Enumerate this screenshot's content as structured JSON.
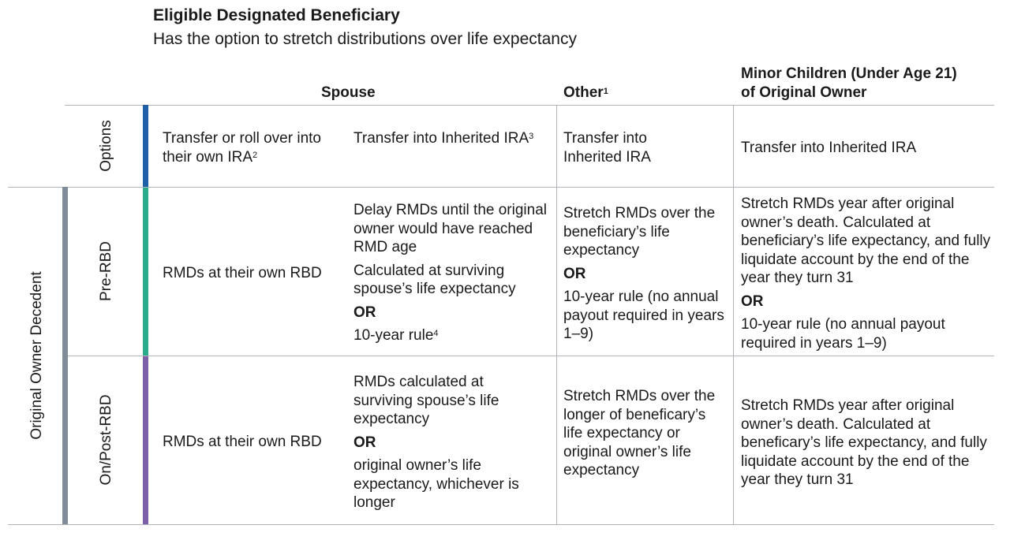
{
  "header": {
    "title": "Eligible Designated Beneficiary",
    "subtitle": "Has the option to stretch distributions over life expectancy"
  },
  "columns": {
    "spouse": "Spouse",
    "other": "Other",
    "other_sup": "1",
    "minor_line1": "Minor Children (Under Age 21)",
    "minor_line2": "of Original Owner"
  },
  "row_labels": {
    "group": "Original Owner Decedent",
    "options": "Options",
    "pre_rbd": "Pre-RBD",
    "post_rbd": "On/Post-RBD"
  },
  "colors": {
    "options_bar": "#1f5fa8",
    "pre_rbd_bar": "#2bab8c",
    "post_rbd_bar": "#7c5fa8",
    "group_bar": "#7f8c99"
  },
  "options_row": {
    "spouse_a": "Transfer or roll over into their own IRA",
    "spouse_a_sup": "2",
    "spouse_b": "Transfer into Inherited IRA",
    "spouse_b_sup": "3",
    "other": "Transfer into Inherited IRA",
    "minor": "Transfer into Inherited IRA"
  },
  "pre_rbd_row": {
    "spouse_a": "RMDs at their own RBD",
    "spouse_b_1": "Delay RMDs until the original owner would have reached RMD age",
    "spouse_b_2": "Calculated at surviving spouse’s life expectancy",
    "spouse_b_or": "OR",
    "spouse_b_3": "10-year rule",
    "spouse_b_3_sup": "4",
    "other_1": "Stretch RMDs over the beneficiary’s life expectancy",
    "other_or": "OR",
    "other_2": "10-year rule (no annual payout required in years 1–9)",
    "minor_1": "Stretch RMDs year after original owner’s death. Calculated at beneficiary’s life expectancy, and fully liquidate account by the end of the year they turn 31",
    "minor_or": "OR",
    "minor_2": "10-year rule (no annual payout required in years 1–9)"
  },
  "post_rbd_row": {
    "spouse_a": "RMDs at their own RBD",
    "spouse_b_1": "RMDs calculated at surviving spouse’s life expectancy",
    "spouse_b_or": "OR",
    "spouse_b_2": "original owner’s life expectancy, whichever is longer",
    "other": "Stretch RMDs over the longer of beneficary’s life expectancy or original owner’s life expectancy",
    "minor": "Stretch RMDs year after original owner’s death. Calculated at beneficary’s life expectancy, and fully liquidate account by the end of the year they turn 31"
  }
}
